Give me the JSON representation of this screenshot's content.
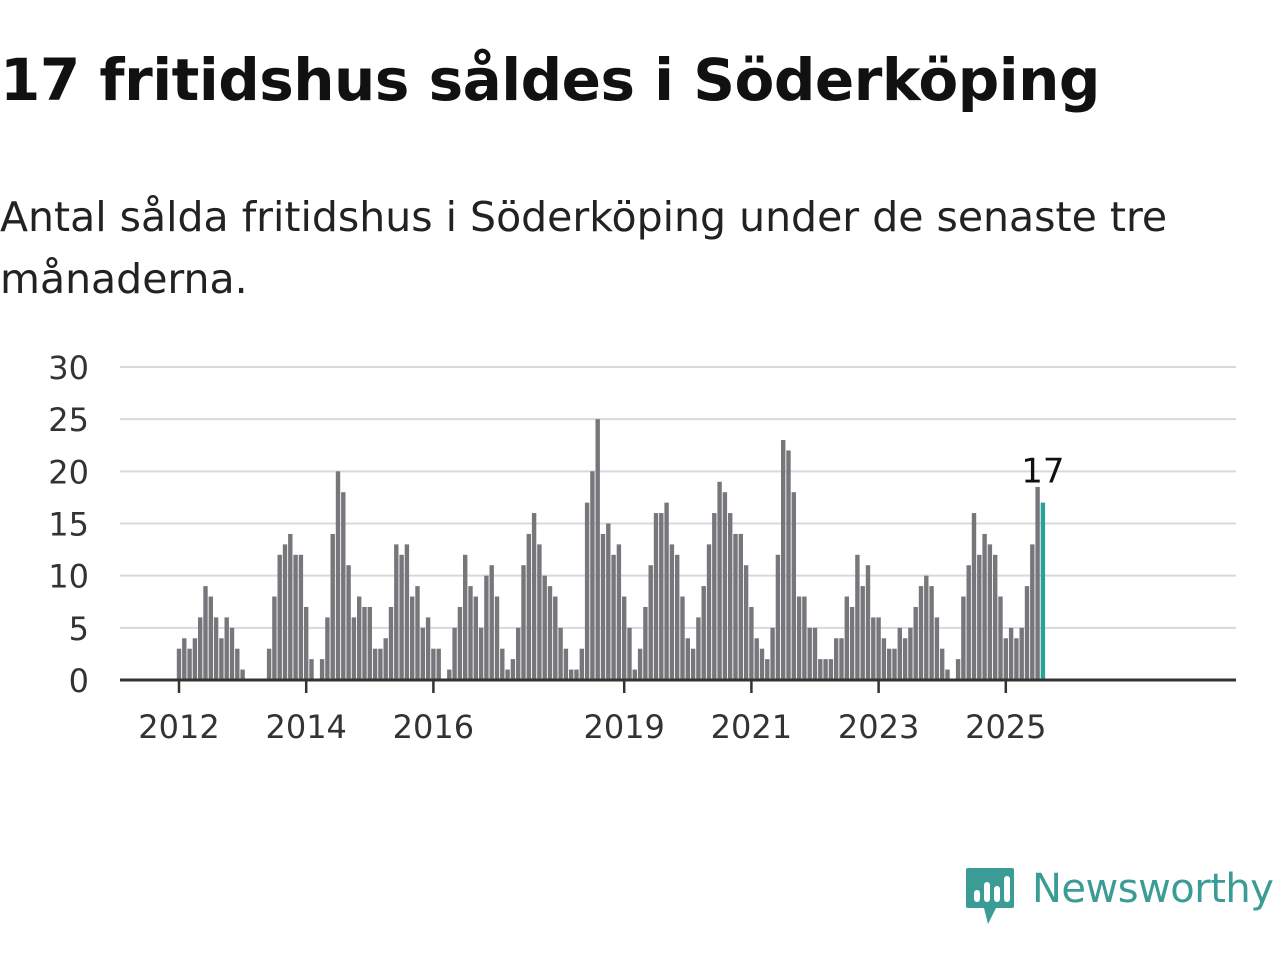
{
  "title": "17 fritidshus såldes i Söderköping",
  "subtitle": "Antal sålda fritidshus i Söderköping under de senaste tre månaderna.",
  "brand": {
    "name": "Newsworthy",
    "logo_icon": "bar-chart-speech-bubble-icon",
    "color": "#3a9c94"
  },
  "chart_data": {
    "type": "bar",
    "title": "",
    "xlabel": "",
    "ylabel": "",
    "ylim": [
      0,
      30
    ],
    "y_ticks": [
      0,
      5,
      10,
      15,
      20,
      25,
      30
    ],
    "x_ticks": [
      "2012",
      "2014",
      "2016",
      "2019",
      "2021",
      "2023",
      "2025"
    ],
    "grid": true,
    "legend": "none",
    "colors": {
      "bars": "#77767b",
      "highlight": "#2aa198",
      "grid": "#d9d9d9",
      "axis": "#333333"
    },
    "highlight_label": "17",
    "x_start": "2011-03",
    "x_end": "2025-07",
    "values": [
      0,
      0,
      0,
      0,
      0,
      0,
      0,
      0,
      0,
      0,
      3,
      4,
      3,
      4,
      6,
      9,
      8,
      6,
      4,
      6,
      5,
      3,
      1,
      0,
      0,
      0,
      0,
      3,
      8,
      12,
      13,
      14,
      12,
      12,
      7,
      2,
      0,
      2,
      6,
      14,
      20,
      18,
      11,
      6,
      8,
      7,
      7,
      3,
      3,
      4,
      7,
      13,
      12,
      13,
      8,
      9,
      5,
      6,
      3,
      3,
      0,
      1,
      5,
      7,
      12,
      9,
      8,
      5,
      10,
      11,
      8,
      3,
      1,
      2,
      5,
      11,
      14,
      16,
      13,
      10,
      9,
      8,
      5,
      3,
      1,
      1,
      3,
      17,
      20,
      25,
      14,
      15,
      12,
      13,
      8,
      5,
      1,
      3,
      7,
      11,
      16,
      16,
      17,
      13,
      12,
      8,
      4,
      3,
      6,
      9,
      13,
      16,
      19,
      18,
      16,
      14,
      14,
      11,
      7,
      4,
      3,
      2,
      5,
      12,
      23,
      22,
      18,
      8,
      8,
      5,
      5,
      2,
      2,
      2,
      4,
      4,
      8,
      7,
      12,
      9,
      11,
      6,
      6,
      4,
      3,
      3,
      5,
      4,
      5,
      7,
      9,
      10,
      9,
      6,
      3,
      1,
      0,
      2,
      8,
      11,
      16,
      12,
      14,
      13,
      12,
      8,
      4,
      5,
      4,
      5,
      9,
      13,
      18.5,
      17
    ]
  }
}
